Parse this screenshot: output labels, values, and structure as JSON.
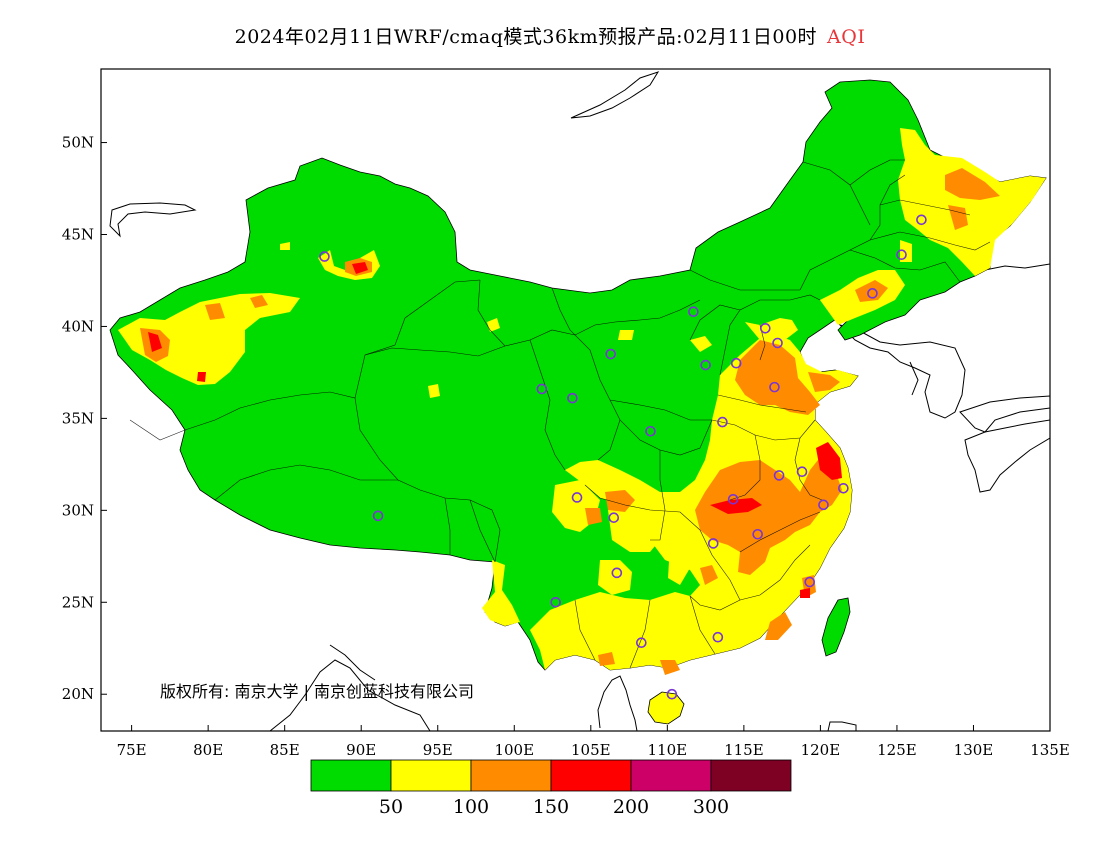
{
  "title": {
    "text": "2024年02月11日WRF/cmaq模式36km预报产品:02月11日00时",
    "variable": "AQI",
    "variable_color": "#e8363a"
  },
  "copyright": "版权所有: 南京大学 | 南京创蓝科技有限公司",
  "chart_data": {
    "type": "heatmap",
    "lon_range": [
      73,
      135
    ],
    "lat_range": [
      18,
      54
    ],
    "x_ticks": [
      "75E",
      "80E",
      "85E",
      "90E",
      "95E",
      "100E",
      "105E",
      "110E",
      "115E",
      "120E",
      "125E",
      "130E",
      "135E"
    ],
    "x_tick_values": [
      75,
      80,
      85,
      90,
      95,
      100,
      105,
      110,
      115,
      120,
      125,
      130,
      135
    ],
    "y_ticks": [
      "20N",
      "25N",
      "30N",
      "35N",
      "40N",
      "45N",
      "50N"
    ],
    "y_tick_values": [
      20,
      25,
      30,
      35,
      40,
      45,
      50
    ],
    "legend": {
      "colors": [
        "#00dc00",
        "#ffff00",
        "#ff8c00",
        "#ff0000",
        "#cc0066",
        "#7e0023"
      ],
      "labels": [
        "50",
        "100",
        "150",
        "200",
        "300"
      ]
    },
    "stations": [
      {
        "lon": 87.6,
        "lat": 43.8
      },
      {
        "lon": 91.1,
        "lat": 29.7
      },
      {
        "lon": 101.8,
        "lat": 36.6
      },
      {
        "lon": 103.8,
        "lat": 36.1
      },
      {
        "lon": 106.3,
        "lat": 38.5
      },
      {
        "lon": 111.7,
        "lat": 40.8
      },
      {
        "lon": 112.5,
        "lat": 37.9
      },
      {
        "lon": 114.5,
        "lat": 38.0
      },
      {
        "lon": 116.4,
        "lat": 39.9
      },
      {
        "lon": 117.2,
        "lat": 39.1
      },
      {
        "lon": 117.0,
        "lat": 36.7
      },
      {
        "lon": 113.6,
        "lat": 34.8
      },
      {
        "lon": 108.9,
        "lat": 34.3
      },
      {
        "lon": 104.1,
        "lat": 30.7
      },
      {
        "lon": 106.5,
        "lat": 29.6
      },
      {
        "lon": 114.3,
        "lat": 30.6
      },
      {
        "lon": 117.3,
        "lat": 31.9
      },
      {
        "lon": 118.8,
        "lat": 32.1
      },
      {
        "lon": 121.5,
        "lat": 31.2
      },
      {
        "lon": 120.2,
        "lat": 30.3
      },
      {
        "lon": 115.9,
        "lat": 28.7
      },
      {
        "lon": 113.0,
        "lat": 28.2
      },
      {
        "lon": 106.7,
        "lat": 26.6
      },
      {
        "lon": 102.7,
        "lat": 25.0
      },
      {
        "lon": 108.3,
        "lat": 22.8
      },
      {
        "lon": 113.3,
        "lat": 23.1
      },
      {
        "lon": 119.3,
        "lat": 26.1
      },
      {
        "lon": 110.3,
        "lat": 20.0
      },
      {
        "lon": 123.4,
        "lat": 41.8
      },
      {
        "lon": 125.3,
        "lat": 43.9
      },
      {
        "lon": 126.6,
        "lat": 45.8
      }
    ]
  }
}
